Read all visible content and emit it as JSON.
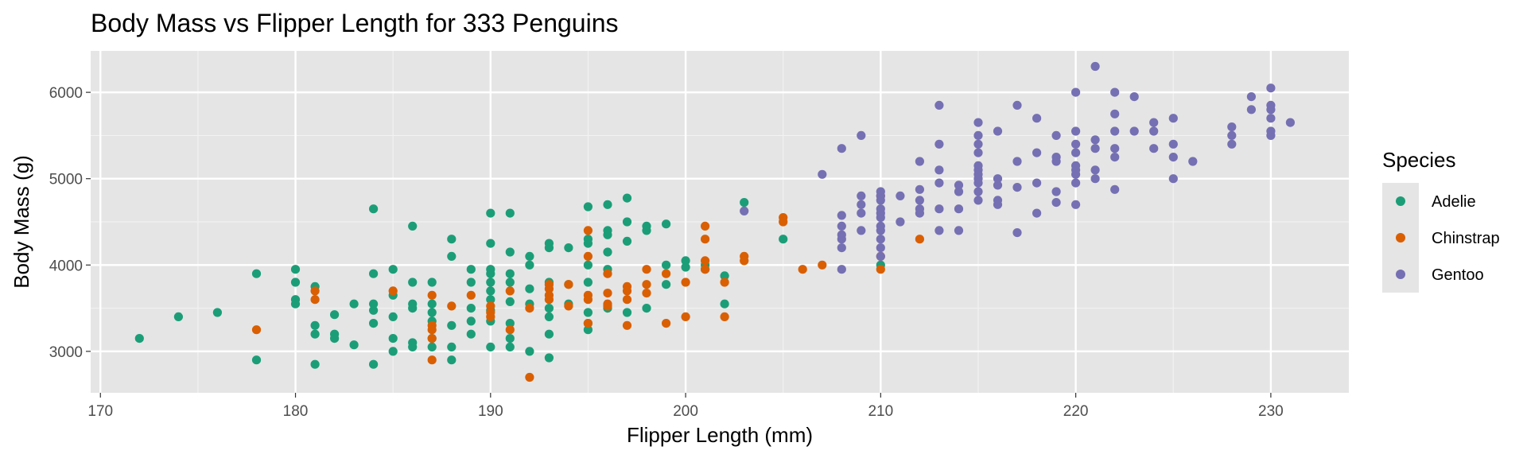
{
  "chart_data": {
    "type": "scatter",
    "title": "Body Mass vs Flipper Length for 333 Penguins",
    "xlabel": "Flipper Length (mm)",
    "ylabel": "Body Mass (g)",
    "xlim": [
      169.5,
      234
    ],
    "ylim": [
      2520,
      6480
    ],
    "xticks": [
      170,
      180,
      190,
      200,
      210,
      220,
      230
    ],
    "yticks": [
      3000,
      4000,
      5000,
      6000
    ],
    "grid": true,
    "legend": {
      "title": "Species",
      "position": "right"
    },
    "colors": {
      "Adelie": "#1b9e77",
      "Chinstrap": "#d95f02",
      "Gentoo": "#7570b3"
    },
    "series": [
      {
        "name": "Adelie",
        "points": [
          [
            172,
            3150
          ],
          [
            174,
            3400
          ],
          [
            176,
            3450
          ],
          [
            178,
            3900
          ],
          [
            178,
            2900
          ],
          [
            180,
            3950
          ],
          [
            180,
            3800
          ],
          [
            180,
            3600
          ],
          [
            180,
            3550
          ],
          [
            181,
            3750
          ],
          [
            181,
            3300
          ],
          [
            181,
            3200
          ],
          [
            181,
            2850
          ],
          [
            182,
            3425
          ],
          [
            182,
            3200
          ],
          [
            182,
            3150
          ],
          [
            183,
            3550
          ],
          [
            183,
            3075
          ],
          [
            184,
            4650
          ],
          [
            184,
            3900
          ],
          [
            184,
            3550
          ],
          [
            184,
            3475
          ],
          [
            184,
            3325
          ],
          [
            184,
            2850
          ],
          [
            185,
            3950
          ],
          [
            185,
            3650
          ],
          [
            185,
            3400
          ],
          [
            185,
            3150
          ],
          [
            185,
            3000
          ],
          [
            186,
            4450
          ],
          [
            186,
            3800
          ],
          [
            186,
            3550
          ],
          [
            186,
            3500
          ],
          [
            186,
            3100
          ],
          [
            186,
            3050
          ],
          [
            187,
            3800
          ],
          [
            187,
            3550
          ],
          [
            187,
            3450
          ],
          [
            187,
            3350
          ],
          [
            187,
            3150
          ],
          [
            187,
            3050
          ],
          [
            188,
            4300
          ],
          [
            188,
            4100
          ],
          [
            188,
            3300
          ],
          [
            188,
            3050
          ],
          [
            188,
            2900
          ],
          [
            189,
            3950
          ],
          [
            189,
            3800
          ],
          [
            189,
            3500
          ],
          [
            189,
            3350
          ],
          [
            189,
            3200
          ],
          [
            190,
            4600
          ],
          [
            190,
            4250
          ],
          [
            190,
            3950
          ],
          [
            190,
            3900
          ],
          [
            190,
            3800
          ],
          [
            190,
            3700
          ],
          [
            190,
            3600
          ],
          [
            190,
            3475
          ],
          [
            190,
            3350
          ],
          [
            190,
            3050
          ],
          [
            191,
            4600
          ],
          [
            191,
            4150
          ],
          [
            191,
            3900
          ],
          [
            191,
            3800
          ],
          [
            191,
            3575
          ],
          [
            191,
            3325
          ],
          [
            191,
            3150
          ],
          [
            191,
            3050
          ],
          [
            192,
            4100
          ],
          [
            192,
            4000
          ],
          [
            192,
            3725
          ],
          [
            192,
            3550
          ],
          [
            192,
            3000
          ],
          [
            193,
            4250
          ],
          [
            193,
            4200
          ],
          [
            193,
            3800
          ],
          [
            193,
            3500
          ],
          [
            193,
            3400
          ],
          [
            193,
            3200
          ],
          [
            193,
            2925
          ],
          [
            194,
            4200
          ],
          [
            194,
            3775
          ],
          [
            194,
            3550
          ],
          [
            195,
            4675
          ],
          [
            195,
            4300
          ],
          [
            195,
            4250
          ],
          [
            195,
            4000
          ],
          [
            195,
            3800
          ],
          [
            195,
            3450
          ],
          [
            195,
            3325
          ],
          [
            195,
            3250
          ],
          [
            196,
            4700
          ],
          [
            196,
            4400
          ],
          [
            196,
            4350
          ],
          [
            196,
            4150
          ],
          [
            196,
            3950
          ],
          [
            196,
            3500
          ],
          [
            197,
            4775
          ],
          [
            197,
            4500
          ],
          [
            197,
            4275
          ],
          [
            197,
            3450
          ],
          [
            198,
            4450
          ],
          [
            198,
            4400
          ],
          [
            198,
            3500
          ],
          [
            199,
            4475
          ],
          [
            199,
            4000
          ],
          [
            199,
            3775
          ],
          [
            200,
            4050
          ],
          [
            200,
            3975
          ],
          [
            201,
            4000
          ],
          [
            201,
            3950
          ],
          [
            202,
            3875
          ],
          [
            202,
            3550
          ],
          [
            203,
            4725
          ],
          [
            205,
            4300
          ],
          [
            210,
            4000
          ]
        ]
      },
      {
        "name": "Chinstrap",
        "points": [
          [
            178,
            3250
          ],
          [
            181,
            3700
          ],
          [
            181,
            3600
          ],
          [
            185,
            3700
          ],
          [
            187,
            3650
          ],
          [
            187,
            3300
          ],
          [
            187,
            3250
          ],
          [
            187,
            3150
          ],
          [
            187,
            2900
          ],
          [
            188,
            3525
          ],
          [
            189,
            3650
          ],
          [
            190,
            3525
          ],
          [
            190,
            3450
          ],
          [
            190,
            3400
          ],
          [
            191,
            3700
          ],
          [
            191,
            3250
          ],
          [
            192,
            3500
          ],
          [
            192,
            2700
          ],
          [
            193,
            3775
          ],
          [
            193,
            3725
          ],
          [
            193,
            3650
          ],
          [
            193,
            3600
          ],
          [
            194,
            3775
          ],
          [
            194,
            3525
          ],
          [
            195,
            4400
          ],
          [
            195,
            4100
          ],
          [
            195,
            3650
          ],
          [
            195,
            3600
          ],
          [
            195,
            3325
          ],
          [
            196,
            3900
          ],
          [
            196,
            3675
          ],
          [
            196,
            3550
          ],
          [
            196,
            3525
          ],
          [
            197,
            3750
          ],
          [
            197,
            3700
          ],
          [
            197,
            3600
          ],
          [
            197,
            3300
          ],
          [
            198,
            3950
          ],
          [
            198,
            3775
          ],
          [
            198,
            3675
          ],
          [
            199,
            3900
          ],
          [
            199,
            3325
          ],
          [
            200,
            3800
          ],
          [
            200,
            3400
          ],
          [
            201,
            4450
          ],
          [
            201,
            4300
          ],
          [
            201,
            4050
          ],
          [
            201,
            3950
          ],
          [
            202,
            3800
          ],
          [
            202,
            3400
          ],
          [
            203,
            4100
          ],
          [
            203,
            4050
          ],
          [
            205,
            4550
          ],
          [
            205,
            4500
          ],
          [
            206,
            3950
          ],
          [
            207,
            4000
          ],
          [
            210,
            4800
          ],
          [
            210,
            4100
          ],
          [
            210,
            3950
          ],
          [
            212,
            4300
          ]
        ]
      },
      {
        "name": "Gentoo",
        "points": [
          [
            203,
            4625
          ],
          [
            207,
            5050
          ],
          [
            208,
            5350
          ],
          [
            208,
            4575
          ],
          [
            208,
            4450
          ],
          [
            208,
            4350
          ],
          [
            208,
            4300
          ],
          [
            208,
            4200
          ],
          [
            208,
            3950
          ],
          [
            209,
            5500
          ],
          [
            209,
            4800
          ],
          [
            209,
            4700
          ],
          [
            209,
            4600
          ],
          [
            209,
            4400
          ],
          [
            210,
            4850
          ],
          [
            210,
            4800
          ],
          [
            210,
            4750
          ],
          [
            210,
            4650
          ],
          [
            210,
            4600
          ],
          [
            210,
            4550
          ],
          [
            210,
            4450
          ],
          [
            210,
            4400
          ],
          [
            210,
            4300
          ],
          [
            210,
            4200
          ],
          [
            210,
            4100
          ],
          [
            211,
            4800
          ],
          [
            211,
            4500
          ],
          [
            212,
            5200
          ],
          [
            212,
            4875
          ],
          [
            212,
            4750
          ],
          [
            212,
            4650
          ],
          [
            212,
            4600
          ],
          [
            213,
            5850
          ],
          [
            213,
            5400
          ],
          [
            213,
            5100
          ],
          [
            213,
            4950
          ],
          [
            213,
            4650
          ],
          [
            213,
            4400
          ],
          [
            214,
            4925
          ],
          [
            214,
            4850
          ],
          [
            214,
            4650
          ],
          [
            214,
            4400
          ],
          [
            215,
            5650
          ],
          [
            215,
            5500
          ],
          [
            215,
            5400
          ],
          [
            215,
            5300
          ],
          [
            215,
            5150
          ],
          [
            215,
            5100
          ],
          [
            215,
            5050
          ],
          [
            215,
            5000
          ],
          [
            215,
            4950
          ],
          [
            215,
            4850
          ],
          [
            215,
            4750
          ],
          [
            216,
            5550
          ],
          [
            216,
            5000
          ],
          [
            216,
            4925
          ],
          [
            216,
            4750
          ],
          [
            216,
            4700
          ],
          [
            217,
            5850
          ],
          [
            217,
            5200
          ],
          [
            217,
            4900
          ],
          [
            217,
            4375
          ],
          [
            218,
            5700
          ],
          [
            218,
            5300
          ],
          [
            218,
            4950
          ],
          [
            218,
            4600
          ],
          [
            219,
            5500
          ],
          [
            219,
            5250
          ],
          [
            219,
            5200
          ],
          [
            219,
            4850
          ],
          [
            219,
            4725
          ],
          [
            220,
            6000
          ],
          [
            220,
            5550
          ],
          [
            220,
            5400
          ],
          [
            220,
            5300
          ],
          [
            220,
            5150
          ],
          [
            220,
            5100
          ],
          [
            220,
            5050
          ],
          [
            220,
            4950
          ],
          [
            220,
            4700
          ],
          [
            221,
            6300
          ],
          [
            221,
            5450
          ],
          [
            221,
            5350
          ],
          [
            221,
            5100
          ],
          [
            221,
            5000
          ],
          [
            222,
            6000
          ],
          [
            222,
            5750
          ],
          [
            222,
            5550
          ],
          [
            222,
            5350
          ],
          [
            222,
            5250
          ],
          [
            222,
            4875
          ],
          [
            223,
            5950
          ],
          [
            223,
            5550
          ],
          [
            224,
            5650
          ],
          [
            224,
            5550
          ],
          [
            224,
            5350
          ],
          [
            225,
            5700
          ],
          [
            225,
            5400
          ],
          [
            225,
            5250
          ],
          [
            225,
            5000
          ],
          [
            226,
            5200
          ],
          [
            228,
            5600
          ],
          [
            228,
            5500
          ],
          [
            228,
            5400
          ],
          [
            229,
            5950
          ],
          [
            229,
            5800
          ],
          [
            230,
            6050
          ],
          [
            230,
            5850
          ],
          [
            230,
            5800
          ],
          [
            230,
            5700
          ],
          [
            230,
            5550
          ],
          [
            230,
            5500
          ],
          [
            231,
            5650
          ]
        ]
      }
    ]
  }
}
